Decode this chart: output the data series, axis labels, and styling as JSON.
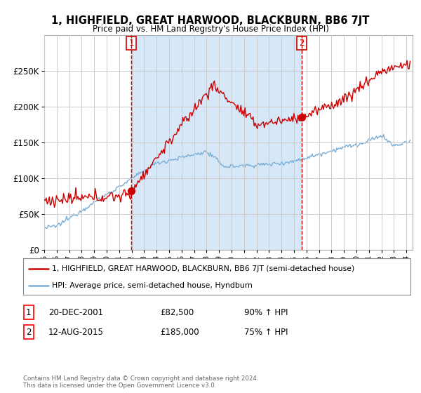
{
  "title": "1, HIGHFIELD, GREAT HARWOOD, BLACKBURN, BB6 7JT",
  "subtitle": "Price paid vs. HM Land Registry's House Price Index (HPI)",
  "legend_line1": "1, HIGHFIELD, GREAT HARWOOD, BLACKBURN, BB6 7JT (semi-detached house)",
  "legend_line2": "HPI: Average price, semi-detached house, Hyndburn",
  "annotation1": {
    "num": "1",
    "date": "20-DEC-2001",
    "price": "£82,500",
    "hpi": "90% ↑ HPI"
  },
  "annotation2": {
    "num": "2",
    "date": "12-AUG-2015",
    "price": "£185,000",
    "hpi": "75% ↑ HPI"
  },
  "footer": "Contains HM Land Registry data © Crown copyright and database right 2024.\nThis data is licensed under the Open Government Licence v3.0.",
  "vline1_x": 2001.97,
  "vline2_x": 2015.62,
  "sale1_x": 2001.97,
  "sale1_y": 82500,
  "sale2_x": 2015.62,
  "sale2_y": 185000,
  "hpi_color": "#7aaed6",
  "price_color": "#cc0000",
  "shade_color": "#d6e8f7",
  "background_color": "#ffffff",
  "grid_color": "#cccccc",
  "ylim": [
    0,
    300000
  ],
  "xlim_start": 1995.0,
  "xlim_end": 2024.5
}
